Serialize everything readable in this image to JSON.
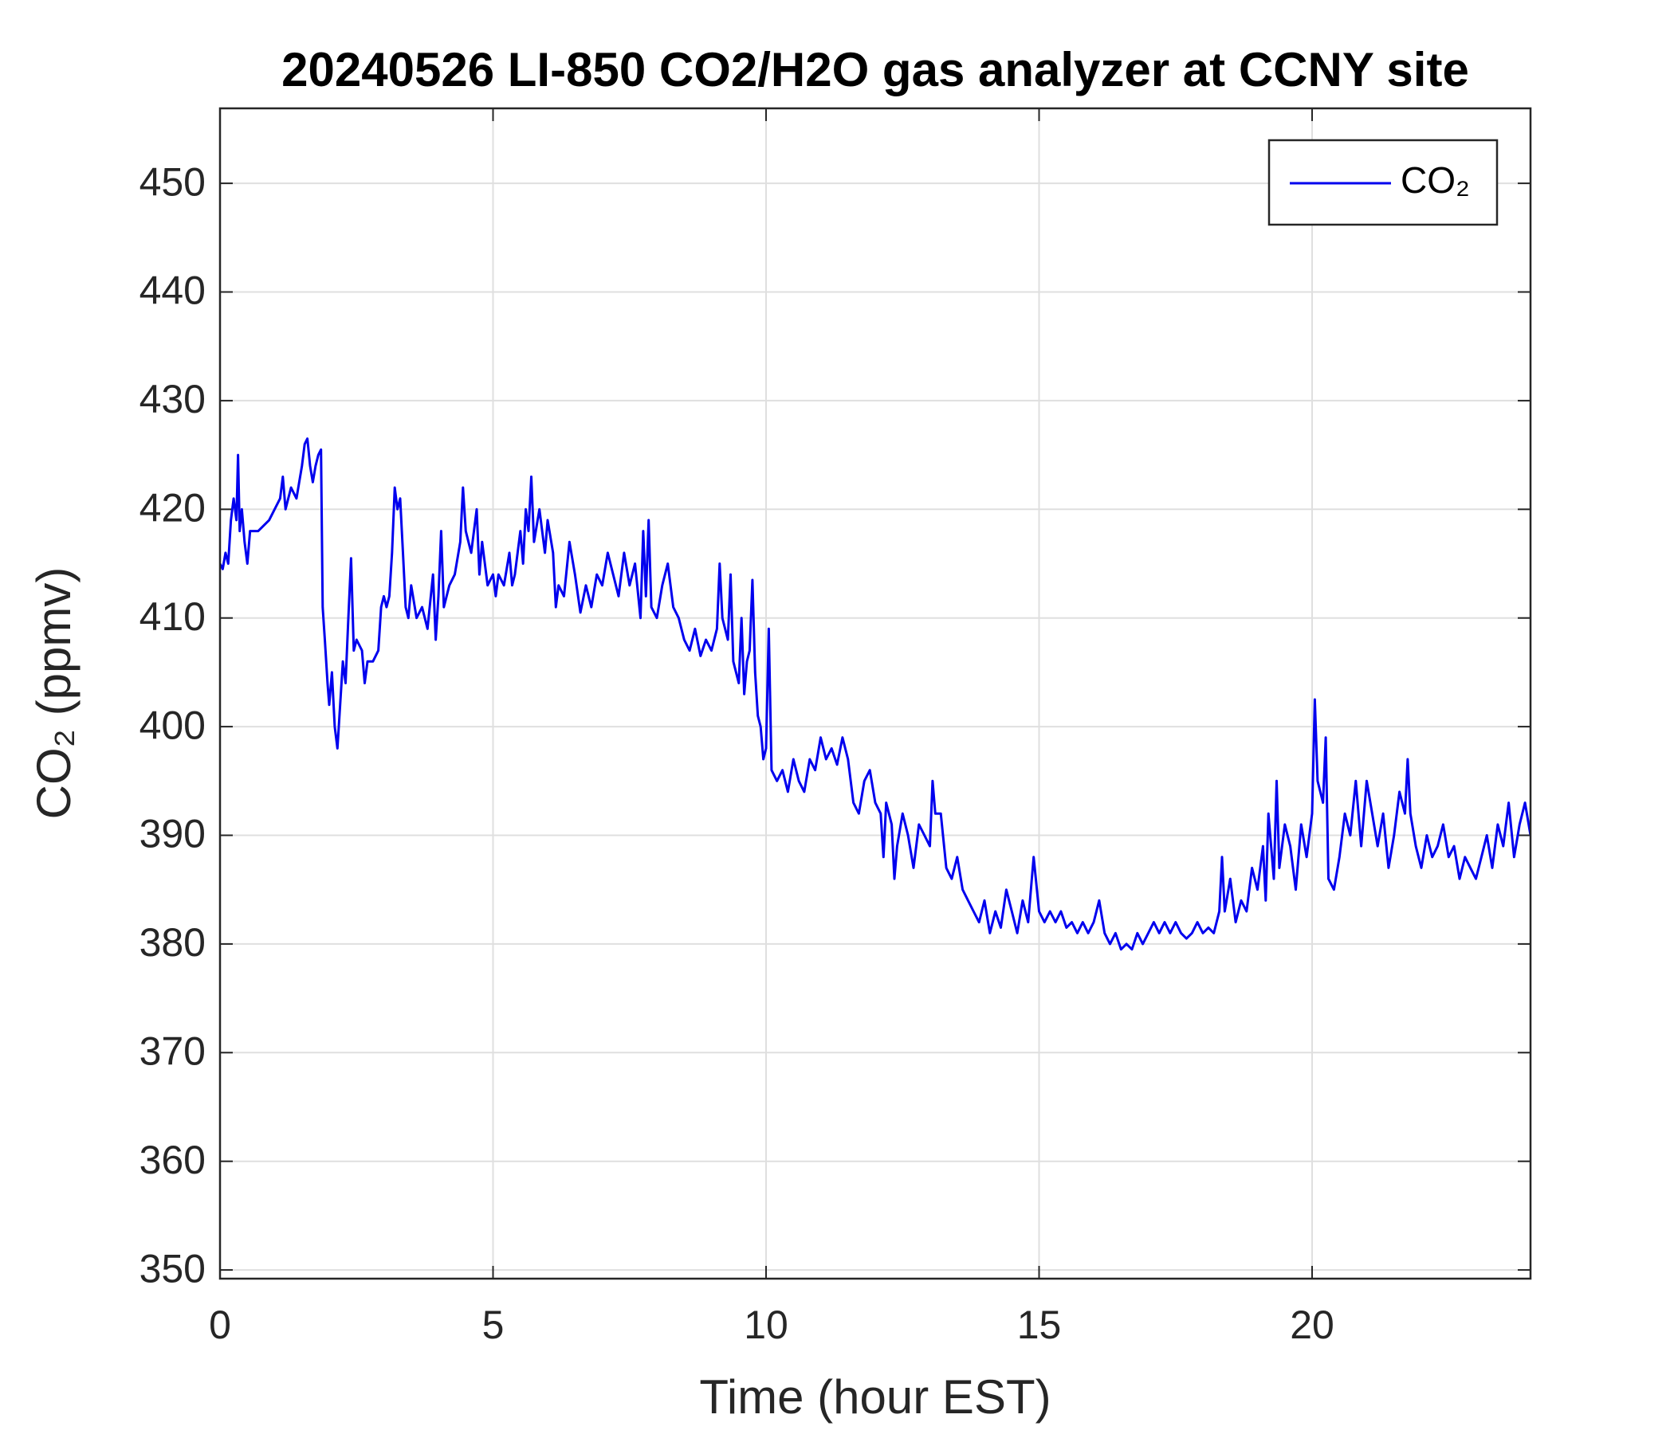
{
  "chart_data": {
    "type": "line",
    "title": "20240526 LI-850 CO2/H2O gas analyzer at CCNY site",
    "xlabel": "Time (hour EST)",
    "ylabel": "CO₂ (ppmv)",
    "xlim": [
      0,
      24
    ],
    "xticks": [
      0,
      5,
      10,
      15,
      20
    ],
    "ylim": [
      349.2,
      456.9
    ],
    "yticks": [
      350,
      360,
      370,
      380,
      390,
      400,
      410,
      420,
      430,
      440,
      450
    ],
    "grid": true,
    "legend": "northeast",
    "series": [
      {
        "name": "CO₂",
        "color": "#0000ee",
        "x": [
          0,
          0.05,
          0.1,
          0.15,
          0.2,
          0.25,
          0.3,
          0.33,
          0.36,
          0.4,
          0.45,
          0.5,
          0.55,
          0.7,
          0.9,
          1.0,
          1.1,
          1.15,
          1.2,
          1.3,
          1.4,
          1.5,
          1.55,
          1.6,
          1.65,
          1.7,
          1.75,
          1.8,
          1.85,
          1.88,
          1.92,
          1.97,
          2.0,
          2.05,
          2.1,
          2.15,
          2.2,
          2.25,
          2.3,
          2.35,
          2.4,
          2.45,
          2.5,
          2.6,
          2.65,
          2.7,
          2.8,
          2.9,
          2.95,
          3.0,
          3.05,
          3.1,
          3.15,
          3.2,
          3.25,
          3.3,
          3.35,
          3.4,
          3.45,
          3.5,
          3.6,
          3.7,
          3.8,
          3.9,
          3.95,
          4.0,
          4.05,
          4.1,
          4.2,
          4.3,
          4.4,
          4.45,
          4.5,
          4.6,
          4.7,
          4.75,
          4.8,
          4.9,
          5.0,
          5.05,
          5.1,
          5.2,
          5.3,
          5.35,
          5.4,
          5.5,
          5.55,
          5.6,
          5.65,
          5.7,
          5.75,
          5.85,
          5.95,
          6.0,
          6.1,
          6.15,
          6.2,
          6.3,
          6.4,
          6.5,
          6.6,
          6.7,
          6.8,
          6.9,
          7.0,
          7.1,
          7.2,
          7.3,
          7.4,
          7.5,
          7.6,
          7.7,
          7.75,
          7.8,
          7.85,
          7.9,
          8.0,
          8.1,
          8.2,
          8.3,
          8.4,
          8.5,
          8.6,
          8.7,
          8.8,
          8.9,
          9.0,
          9.1,
          9.15,
          9.2,
          9.3,
          9.35,
          9.4,
          9.5,
          9.55,
          9.6,
          9.65,
          9.7,
          9.75,
          9.8,
          9.85,
          9.9,
          9.95,
          10.0,
          10.05,
          10.1,
          10.2,
          10.3,
          10.4,
          10.5,
          10.6,
          10.7,
          10.8,
          10.9,
          11.0,
          11.1,
          11.2,
          11.3,
          11.4,
          11.5,
          11.6,
          11.7,
          11.8,
          11.9,
          12.0,
          12.1,
          12.15,
          12.2,
          12.3,
          12.35,
          12.4,
          12.5,
          12.6,
          12.7,
          12.8,
          12.9,
          13.0,
          13.05,
          13.1,
          13.2,
          13.3,
          13.4,
          13.5,
          13.6,
          13.7,
          13.8,
          13.9,
          14.0,
          14.1,
          14.2,
          14.3,
          14.4,
          14.5,
          14.6,
          14.7,
          14.8,
          14.9,
          15.0,
          15.1,
          15.2,
          15.3,
          15.4,
          15.5,
          15.6,
          15.7,
          15.8,
          15.9,
          16.0,
          16.1,
          16.2,
          16.3,
          16.4,
          16.5,
          16.6,
          16.7,
          16.8,
          16.9,
          17.0,
          17.1,
          17.2,
          17.3,
          17.4,
          17.5,
          17.6,
          17.7,
          17.8,
          17.9,
          18.0,
          18.1,
          18.2,
          18.3,
          18.35,
          18.4,
          18.5,
          18.6,
          18.7,
          18.8,
          18.9,
          19.0,
          19.1,
          19.15,
          19.2,
          19.3,
          19.35,
          19.4,
          19.5,
          19.6,
          19.7,
          19.8,
          19.9,
          20.0,
          20.05,
          20.1,
          20.2,
          20.25,
          20.3,
          20.4,
          20.5,
          20.6,
          20.7,
          20.8,
          20.9,
          21.0,
          21.1,
          21.2,
          21.3,
          21.4,
          21.5,
          21.6,
          21.7,
          21.75,
          21.8,
          21.9,
          22.0,
          22.1,
          22.2,
          22.3,
          22.4,
          22.5,
          22.6,
          22.7,
          22.8,
          22.9,
          23.0,
          23.1,
          23.2,
          23.3,
          23.4,
          23.5,
          23.6,
          23.7,
          23.8,
          23.9,
          24.0
        ],
        "values": [
          415,
          414.5,
          416,
          415,
          419,
          421,
          419,
          425,
          418,
          420,
          417,
          415,
          418,
          418,
          419,
          420,
          421,
          423,
          420,
          422,
          421,
          424,
          426,
          426.5,
          424,
          422.5,
          424,
          425,
          425.5,
          411,
          408,
          404,
          402,
          405,
          400,
          398,
          402,
          406,
          404,
          410,
          415.5,
          407,
          408,
          407,
          404,
          406,
          406,
          407,
          411,
          412,
          411,
          412,
          416,
          422,
          420,
          421,
          416,
          411,
          410,
          413,
          410,
          411,
          409,
          414,
          408,
          412,
          418,
          411,
          413,
          414,
          417,
          422,
          418,
          416,
          420,
          414,
          417,
          413,
          414,
          412,
          414,
          413,
          416,
          413,
          414,
          418,
          415,
          420,
          418,
          423,
          417,
          420,
          416,
          419,
          416,
          411,
          413,
          412,
          417,
          414,
          410.5,
          413,
          411,
          414,
          413,
          416,
          414,
          412,
          416,
          413,
          415,
          410,
          418,
          412,
          419,
          411,
          410,
          413,
          415,
          411,
          410,
          408,
          407,
          409,
          406.5,
          408,
          407,
          409,
          415,
          410,
          408,
          414,
          406,
          404,
          410,
          403,
          406,
          407,
          413.5,
          405,
          401,
          400,
          397,
          398,
          409,
          396,
          395,
          396,
          394,
          397,
          395,
          394,
          397,
          396,
          399,
          397,
          398,
          396.5,
          399,
          397,
          393,
          392,
          395,
          396,
          393,
          392,
          388,
          393,
          391,
          386,
          389,
          392,
          390,
          387,
          391,
          390,
          389,
          395,
          392,
          392,
          387,
          386,
          388,
          385,
          384,
          383,
          382,
          384,
          381,
          383,
          381.5,
          385,
          383,
          381,
          384,
          382,
          388,
          383,
          382,
          383,
          382,
          383,
          381.5,
          382,
          381,
          382,
          381,
          382,
          384,
          381,
          380,
          381,
          379.5,
          380,
          379.5,
          381,
          380,
          381,
          382,
          381,
          382,
          381,
          382,
          381,
          380.5,
          381,
          382,
          381,
          381.5,
          381,
          383,
          388,
          383,
          386,
          382,
          384,
          383,
          387,
          385,
          389,
          384,
          392,
          386,
          395,
          387,
          391,
          389,
          385,
          391,
          388,
          392,
          402.5,
          395,
          393,
          399,
          386,
          385,
          388,
          392,
          390,
          395,
          389,
          395,
          392,
          389,
          392,
          387,
          390,
          394,
          392,
          397,
          392,
          389,
          387,
          390,
          388,
          389,
          391,
          388,
          389,
          386,
          388,
          387,
          386,
          388,
          390,
          387,
          391,
          389,
          393,
          388,
          391,
          393,
          390
        ]
      }
    ]
  }
}
